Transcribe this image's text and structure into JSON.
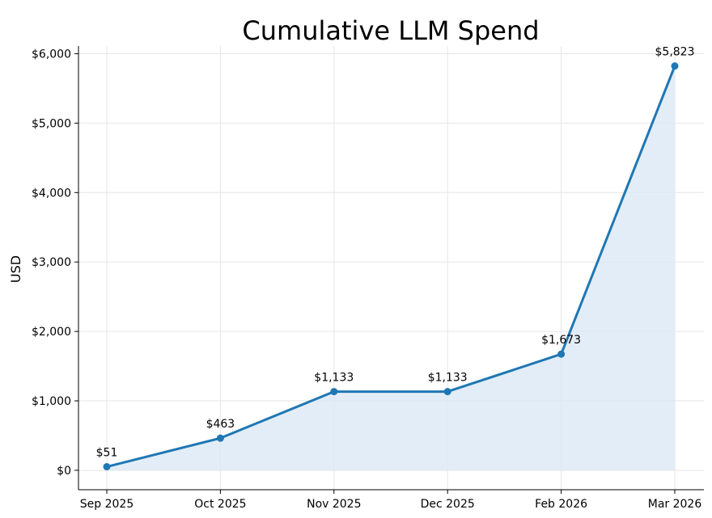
{
  "chart_data": {
    "type": "area",
    "title": "Cumulative LLM Spend",
    "xlabel": "",
    "ylabel": "USD",
    "categories": [
      "Sep 2025",
      "Oct 2025",
      "Nov 2025",
      "Dec 2025",
      "Feb 2026",
      "Mar 2026"
    ],
    "values": [
      51,
      463,
      1133,
      1133,
      1673,
      5823
    ],
    "data_labels": [
      "$51",
      "$463",
      "$1,133",
      "$1,133",
      "$1,673",
      "$5,823"
    ],
    "ylim": [
      -280,
      6110
    ],
    "yticks": [
      0,
      1000,
      2000,
      3000,
      4000,
      5000,
      6000
    ],
    "ytick_labels": [
      "$0",
      "$1,000",
      "$2,000",
      "$3,000",
      "$4,000",
      "$5,000",
      "$6,000"
    ],
    "grid": true,
    "line_color": "#1f77b4",
    "fill_color": "#dce9f5"
  }
}
